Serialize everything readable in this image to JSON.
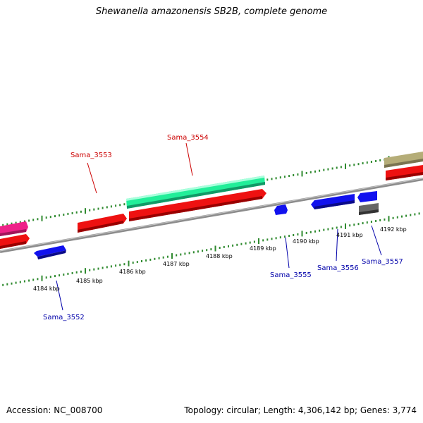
{
  "title": "Shewanella amazonensis SB2B, complete genome",
  "footer": {
    "accession": "Accession: NC_008700",
    "summary": "Topology: circular; Length: 4,306,142 bp; Genes: 3,774"
  },
  "colors": {
    "backbone": "#8c8c8c",
    "tick": "#2f8a2f",
    "forward_cds": "#ee1111",
    "reverse_cds": "#1111ee",
    "rna": "#22ee99",
    "other_pink": "#ee2288",
    "other_gray": "#666666",
    "other_tan": "#b5ad78",
    "label_forward": "#cc0000",
    "label_reverse": "#0000aa"
  },
  "kbp_labels": [
    "4184 kbp",
    "4185 kbp",
    "4186 kbp",
    "4187 kbp",
    "4188 kbp",
    "4189 kbp",
    "4190 kbp",
    "4191 kbp",
    "4192 kbp"
  ],
  "gene_labels": {
    "top": [
      "Sama_3553",
      "Sama_3554"
    ],
    "bottom": [
      "Sama_3552",
      "Sama_3555",
      "Sama_3556",
      "Sama_3557"
    ]
  }
}
